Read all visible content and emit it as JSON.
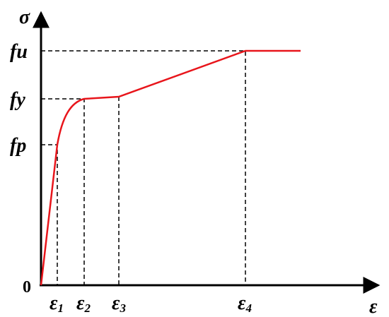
{
  "diagram": {
    "y_axis_label": "σ",
    "x_axis_label": "ε",
    "origin_label": "0",
    "y_labels": [
      "fu",
      "fy",
      "fp"
    ],
    "x_labels": [
      {
        "symbol": "ε",
        "subscript": "1"
      },
      {
        "symbol": "ε",
        "subscript": "2"
      },
      {
        "symbol": "ε",
        "subscript": "3"
      },
      {
        "symbol": "ε",
        "subscript": "4"
      }
    ]
  }
}
